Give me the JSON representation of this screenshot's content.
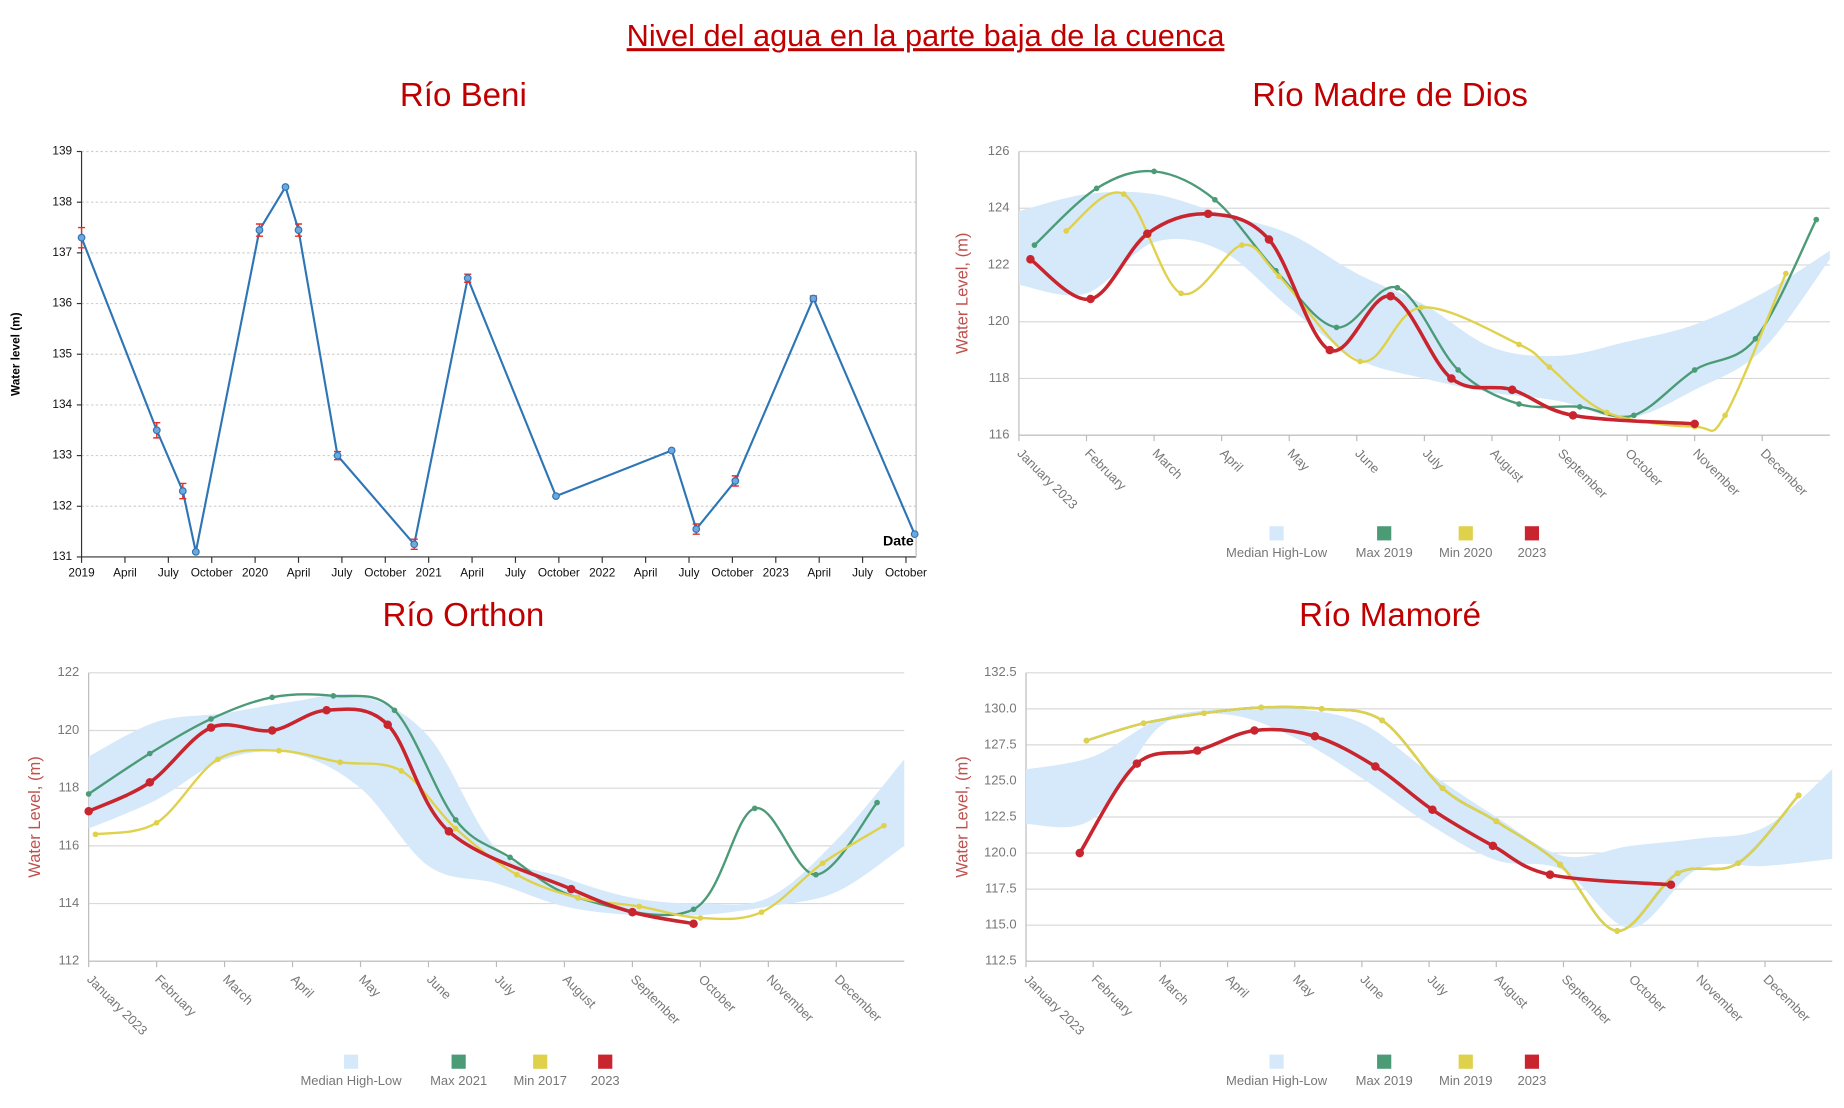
{
  "title": "Nivel del agua en la parte baja de la cuenca",
  "chart_data": [
    {
      "type": "line",
      "title": "Río Beni",
      "y_label": "Water level (m)",
      "x_label": "Date",
      "xlim": [
        0,
        57.7
      ],
      "ylim": [
        131,
        139
      ],
      "grid": "dotted",
      "smooth": false,
      "yticks": [
        131,
        132,
        133,
        134,
        135,
        136,
        137,
        138,
        139
      ],
      "xticks": [
        {
          "value": 0,
          "label": "2019"
        },
        {
          "value": 3,
          "label": "April"
        },
        {
          "value": 6,
          "label": "July"
        },
        {
          "value": 9,
          "label": "October"
        },
        {
          "value": 12,
          "label": "2020"
        },
        {
          "value": 15,
          "label": "April"
        },
        {
          "value": 18,
          "label": "July"
        },
        {
          "value": 21,
          "label": "October"
        },
        {
          "value": 24,
          "label": "2021"
        },
        {
          "value": 27,
          "label": "April"
        },
        {
          "value": 30,
          "label": "July"
        },
        {
          "value": 33,
          "label": "October"
        },
        {
          "value": 36,
          "label": "2022"
        },
        {
          "value": 39,
          "label": "April"
        },
        {
          "value": 42,
          "label": "July"
        },
        {
          "value": 45,
          "label": "October"
        },
        {
          "value": 48,
          "label": "2023"
        },
        {
          "value": 51,
          "label": "April"
        },
        {
          "value": 54,
          "label": "July"
        },
        {
          "value": 57,
          "label": "October"
        }
      ],
      "series": [
        {
          "color": "#2e75b6",
          "error_color": "#e0302a",
          "x": [
            0,
            5.2,
            7,
            7.9,
            12.3,
            14.1,
            15,
            17.7,
            23,
            26.7,
            32.8,
            40.8,
            42.5,
            45.2,
            50.6,
            57.6
          ],
          "values": [
            137.3,
            133.5,
            132.3,
            131.1,
            137.45,
            138.3,
            137.45,
            133.0,
            131.25,
            136.5,
            132.2,
            133.1,
            131.55,
            132.5,
            136.1,
            131.45
          ],
          "errors": [
            0.2,
            0.15,
            0.15,
            null,
            0.12,
            null,
            0.12,
            0.08,
            0.1,
            0.08,
            null,
            null,
            0.1,
            0.1,
            0.05,
            null
          ]
        }
      ]
    },
    {
      "type": "line",
      "title": "Río Madre de Dios",
      "y_label": "Water Level, (m)",
      "xlim": [
        0,
        12
      ],
      "ylim": [
        116,
        126
      ],
      "grid": "solid",
      "smooth": true,
      "legend": "bottom",
      "yticks": [
        116,
        118,
        120,
        122,
        124,
        126
      ],
      "xticks": [
        {
          "value": 0,
          "label": "January 2023"
        },
        {
          "value": 1,
          "label": "February"
        },
        {
          "value": 2,
          "label": "March"
        },
        {
          "value": 3,
          "label": "April"
        },
        {
          "value": 4,
          "label": "May"
        },
        {
          "value": 5,
          "label": "June"
        },
        {
          "value": 6,
          "label": "July"
        },
        {
          "value": 7,
          "label": "August"
        },
        {
          "value": 8,
          "label": "September"
        },
        {
          "value": 9,
          "label": "October"
        },
        {
          "value": 10,
          "label": "November"
        },
        {
          "value": 11,
          "label": "December"
        }
      ],
      "series": [
        {
          "name": "Median High-Low",
          "color": "#d5e9fa",
          "x": [
            0,
            1,
            2,
            3,
            4,
            5,
            6,
            7,
            8,
            9,
            10,
            11,
            12
          ],
          "upper": [
            123.9,
            124.5,
            124.5,
            123.8,
            123.1,
            121.7,
            120.6,
            119.1,
            118.8,
            119.3,
            119.9,
            121.0,
            122.5
          ],
          "lower": [
            121.3,
            121.0,
            122.8,
            122.5,
            120.5,
            118.7,
            118.0,
            117.5,
            117.2,
            116.6,
            117.6,
            119.0,
            122.2
          ]
        },
        {
          "name": "Max 2019",
          "color": "#4b9b77",
          "x": [
            0.23,
            1.15,
            2.0,
            2.9,
            3.8,
            4.7,
            5.6,
            6.5,
            7.4,
            8.3,
            9.1,
            10.0,
            10.9,
            11.8
          ],
          "values": [
            122.7,
            124.7,
            125.3,
            124.3,
            121.8,
            119.8,
            121.2,
            118.3,
            117.1,
            117.0,
            116.7,
            118.3,
            119.4,
            123.6
          ]
        },
        {
          "name": "Min 2020",
          "color": "#e0d14a",
          "x": [
            0.7,
            1.55,
            2.4,
            3.3,
            3.85,
            5.05,
            5.95,
            7.4,
            7.85,
            8.7,
            10.0,
            10.45,
            11.35
          ],
          "values": [
            123.2,
            124.5,
            121.0,
            122.7,
            121.6,
            118.6,
            120.5,
            119.2,
            118.4,
            116.8,
            116.3,
            116.7,
            121.7
          ]
        },
        {
          "name": "2023",
          "color": "#c8252e",
          "x": [
            0.17,
            1.06,
            1.9,
            2.8,
            3.7,
            4.6,
            5.5,
            6.4,
            7.3,
            8.2,
            10.0
          ],
          "values": [
            122.2,
            120.8,
            123.1,
            123.8,
            122.9,
            119.0,
            120.9,
            118.0,
            117.6,
            116.7,
            116.4
          ]
        }
      ]
    },
    {
      "type": "line",
      "title": "Río Orthon",
      "y_label": "Water Level, (m)",
      "xlim": [
        0,
        12
      ],
      "ylim": [
        112,
        122
      ],
      "grid": "solid",
      "smooth": true,
      "legend": "bottom",
      "yticks": [
        112,
        114,
        116,
        118,
        120,
        122
      ],
      "xticks": [
        {
          "value": 0,
          "label": "January 2023"
        },
        {
          "value": 1,
          "label": "February"
        },
        {
          "value": 2,
          "label": "March"
        },
        {
          "value": 3,
          "label": "April"
        },
        {
          "value": 4,
          "label": "May"
        },
        {
          "value": 5,
          "label": "June"
        },
        {
          "value": 6,
          "label": "July"
        },
        {
          "value": 7,
          "label": "August"
        },
        {
          "value": 8,
          "label": "September"
        },
        {
          "value": 9,
          "label": "October"
        },
        {
          "value": 10,
          "label": "November"
        },
        {
          "value": 11,
          "label": "December"
        }
      ],
      "series": [
        {
          "name": "Median High-Low",
          "color": "#d5e9fa",
          "x": [
            0,
            1,
            2,
            3,
            4,
            5,
            6,
            7,
            8,
            9,
            10,
            11,
            12
          ],
          "upper": [
            119.1,
            120.3,
            120.6,
            121.0,
            121.2,
            119.8,
            115.9,
            114.9,
            114.2,
            114.0,
            114.2,
            116.2,
            119.0
          ],
          "lower": [
            116.6,
            117.6,
            119.0,
            119.2,
            118.0,
            115.3,
            114.7,
            113.9,
            113.6,
            113.6,
            113.9,
            114.4,
            116.0
          ]
        },
        {
          "name": "Max 2021",
          "color": "#4b9b77",
          "x": [
            0,
            0.9,
            1.8,
            2.7,
            3.6,
            4.5,
            5.4,
            6.2,
            7.2,
            8.9,
            9.8,
            10.7,
            11.6
          ],
          "values": [
            117.8,
            119.2,
            120.4,
            121.15,
            121.2,
            120.7,
            116.9,
            115.6,
            114.2,
            113.8,
            117.3,
            115.0,
            117.5
          ]
        },
        {
          "name": "Min 2017",
          "color": "#e0d14a",
          "x": [
            0.1,
            1.0,
            1.9,
            2.8,
            3.7,
            4.6,
            5.4,
            6.3,
            7.2,
            8.1,
            9.0,
            9.9,
            10.8,
            11.7
          ],
          "values": [
            116.4,
            116.8,
            119.0,
            119.3,
            118.9,
            118.6,
            116.6,
            115.0,
            114.2,
            113.9,
            113.5,
            113.7,
            115.4,
            116.7
          ]
        },
        {
          "name": "2023",
          "color": "#c8252e",
          "x": [
            0,
            0.9,
            1.8,
            2.7,
            3.5,
            4.4,
            5.3,
            7.1,
            8.0,
            8.9
          ],
          "values": [
            117.2,
            118.2,
            120.1,
            120.0,
            120.7,
            120.2,
            116.5,
            114.5,
            113.7,
            113.3
          ]
        }
      ]
    },
    {
      "type": "line",
      "title": "Río Mamoré",
      "y_label": "Water Level, (m)",
      "xlim": [
        0,
        12
      ],
      "ylim": [
        112.5,
        132.5
      ],
      "grid": "solid",
      "smooth": true,
      "legend": "bottom",
      "yticks": [
        112.5,
        {
          "value": 115,
          "label": "115.0"
        },
        117.5,
        {
          "value": 120,
          "label": "120.0"
        },
        122.5,
        {
          "value": 125,
          "label": "125.0"
        },
        127.5,
        {
          "value": 130,
          "label": "130.0"
        },
        132.5
      ],
      "xticks": [
        {
          "value": 0,
          "label": "January 2023"
        },
        {
          "value": 1,
          "label": "February"
        },
        {
          "value": 2,
          "label": "March"
        },
        {
          "value": 3,
          "label": "April"
        },
        {
          "value": 4,
          "label": "May"
        },
        {
          "value": 5,
          "label": "June"
        },
        {
          "value": 6,
          "label": "July"
        },
        {
          "value": 7,
          "label": "August"
        },
        {
          "value": 8,
          "label": "September"
        },
        {
          "value": 9,
          "label": "October"
        },
        {
          "value": 10,
          "label": "November"
        },
        {
          "value": 11,
          "label": "December"
        }
      ],
      "series": [
        {
          "name": "Median High-Low",
          "color": "#d5e9fa",
          "x": [
            0,
            1,
            2,
            3,
            4,
            5,
            6,
            7,
            8,
            9,
            10,
            11,
            12
          ],
          "upper": [
            125.8,
            126.7,
            129.3,
            130.0,
            130.0,
            129.0,
            125.6,
            122.5,
            119.8,
            120.5,
            121.0,
            121.8,
            125.8
          ],
          "lower": [
            122.0,
            122.4,
            128.8,
            129.6,
            128.0,
            125.2,
            122.0,
            119.5,
            118.8,
            114.8,
            118.9,
            119.1,
            119.6
          ]
        },
        {
          "name": "Max 2019",
          "color": "#4b9b77",
          "x": [
            0.9,
            1.75,
            2.65,
            3.5,
            4.4,
            5.3,
            6.2,
            7.0,
            7.95,
            8.8,
            9.7,
            10.6,
            11.5
          ],
          "values": [
            127.8,
            129.0,
            129.7,
            130.1,
            130.0,
            129.2,
            124.5,
            122.2,
            119.2,
            114.6,
            118.6,
            119.3,
            124.0
          ]
        },
        {
          "name": "Min 2019",
          "color": "#e0d14a",
          "x": [
            0.9,
            1.75,
            2.65,
            3.5,
            4.4,
            5.3,
            6.2,
            7.0,
            7.95,
            8.8,
            9.7,
            10.6,
            11.5
          ],
          "values": [
            127.8,
            129.0,
            129.7,
            130.1,
            130.0,
            129.2,
            124.5,
            122.2,
            119.2,
            114.6,
            118.6,
            119.3,
            124.0
          ]
        },
        {
          "name": "2023",
          "color": "#c8252e",
          "x": [
            0.8,
            1.65,
            2.55,
            3.4,
            4.3,
            5.2,
            6.05,
            6.95,
            7.8,
            9.6
          ],
          "values": [
            120.0,
            126.2,
            127.1,
            128.5,
            128.1,
            126.0,
            123.0,
            120.5,
            118.5,
            117.8
          ]
        }
      ]
    }
  ]
}
